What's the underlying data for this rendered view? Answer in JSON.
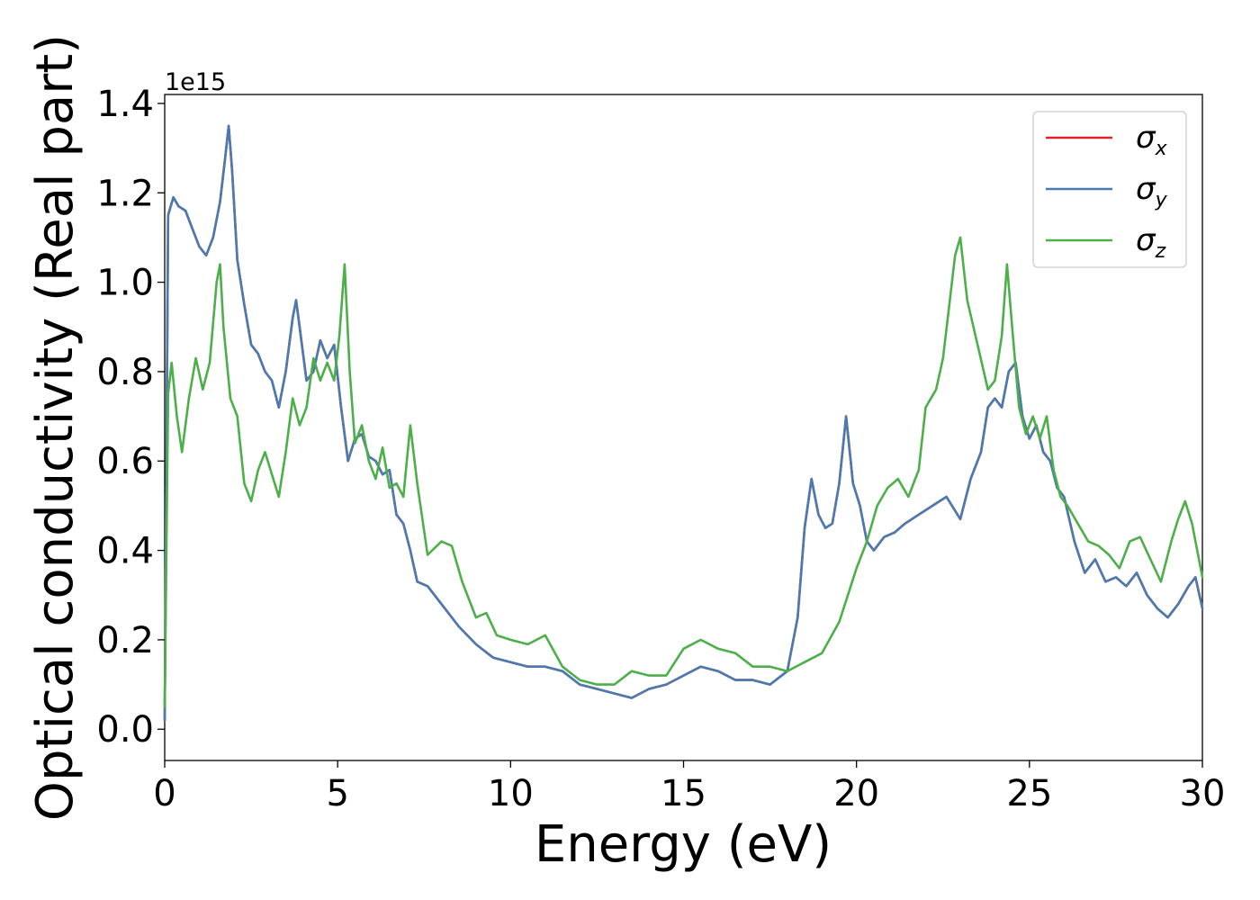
{
  "chart_data": {
    "type": "line",
    "title": "",
    "xlabel": "Energy (eV)",
    "ylabel": "Optical conductivity (Real part)",
    "y_offset_label": "1e15",
    "xlim": [
      0,
      30
    ],
    "ylim": [
      -0.07,
      1.42
    ],
    "xticks": [
      0,
      5,
      10,
      15,
      20,
      25,
      30
    ],
    "xtick_labels": [
      "0",
      "5",
      "10",
      "15",
      "20",
      "25",
      "30"
    ],
    "yticks": [
      0.0,
      0.2,
      0.4,
      0.6,
      0.8,
      1.0,
      1.2,
      1.4
    ],
    "ytick_labels": [
      "0.0",
      "0.2",
      "0.4",
      "0.6",
      "0.8",
      "1.0",
      "1.2",
      "1.4"
    ],
    "grid": false,
    "legend_position": "top-right",
    "series": [
      {
        "name": "σ",
        "subscript": "x",
        "color": "#d62728",
        "x": [
          0,
          0.1,
          0.25,
          0.4,
          0.6,
          0.8,
          1.0,
          1.2,
          1.4,
          1.6,
          1.75,
          1.85,
          1.95,
          2.1,
          2.3,
          2.5,
          2.7,
          2.9,
          3.1,
          3.3,
          3.5,
          3.7,
          3.8,
          3.9,
          4.1,
          4.3,
          4.5,
          4.7,
          4.9,
          5.1,
          5.3,
          5.5,
          5.7,
          5.9,
          6.1,
          6.3,
          6.5,
          6.7,
          6.9,
          7.1,
          7.3,
          7.6,
          8.0,
          8.5,
          9.0,
          9.5,
          10.0,
          10.5,
          11.0,
          11.5,
          12.0,
          12.5,
          13.0,
          13.5,
          14.0,
          14.5,
          15.0,
          15.5,
          16.0,
          16.5,
          17.0,
          17.5,
          18.0,
          18.3,
          18.5,
          18.7,
          18.9,
          19.1,
          19.3,
          19.5,
          19.7,
          19.9,
          20.1,
          20.3,
          20.5,
          20.8,
          21.1,
          21.4,
          21.8,
          22.2,
          22.6,
          23.0,
          23.3,
          23.6,
          23.8,
          24.0,
          24.2,
          24.4,
          24.6,
          24.8,
          25.0,
          25.2,
          25.4,
          25.6,
          25.8,
          26.0,
          26.3,
          26.6,
          26.9,
          27.2,
          27.5,
          27.8,
          28.1,
          28.4,
          28.7,
          29.0,
          29.3,
          29.6,
          29.8,
          30.0
        ],
        "y": [
          0.02,
          1.15,
          1.19,
          1.17,
          1.16,
          1.12,
          1.08,
          1.06,
          1.1,
          1.18,
          1.28,
          1.35,
          1.25,
          1.05,
          0.95,
          0.86,
          0.84,
          0.8,
          0.78,
          0.72,
          0.8,
          0.92,
          0.96,
          0.9,
          0.78,
          0.8,
          0.87,
          0.83,
          0.86,
          0.72,
          0.6,
          0.65,
          0.66,
          0.61,
          0.6,
          0.57,
          0.58,
          0.48,
          0.46,
          0.4,
          0.33,
          0.32,
          0.28,
          0.23,
          0.19,
          0.16,
          0.15,
          0.14,
          0.14,
          0.13,
          0.1,
          0.09,
          0.08,
          0.07,
          0.09,
          0.1,
          0.12,
          0.14,
          0.13,
          0.11,
          0.11,
          0.1,
          0.13,
          0.25,
          0.45,
          0.56,
          0.48,
          0.45,
          0.46,
          0.55,
          0.7,
          0.55,
          0.5,
          0.42,
          0.4,
          0.43,
          0.44,
          0.46,
          0.48,
          0.5,
          0.52,
          0.47,
          0.56,
          0.62,
          0.72,
          0.74,
          0.72,
          0.8,
          0.82,
          0.7,
          0.65,
          0.68,
          0.62,
          0.6,
          0.54,
          0.52,
          0.42,
          0.35,
          0.38,
          0.33,
          0.34,
          0.32,
          0.35,
          0.3,
          0.27,
          0.25,
          0.28,
          0.32,
          0.34,
          0.27
        ]
      },
      {
        "name": "σ",
        "subscript": "y",
        "color": "#4a7bb0",
        "x": [
          0,
          0.1,
          0.25,
          0.4,
          0.6,
          0.8,
          1.0,
          1.2,
          1.4,
          1.6,
          1.75,
          1.85,
          1.95,
          2.1,
          2.3,
          2.5,
          2.7,
          2.9,
          3.1,
          3.3,
          3.5,
          3.7,
          3.8,
          3.9,
          4.1,
          4.3,
          4.5,
          4.7,
          4.9,
          5.1,
          5.3,
          5.5,
          5.7,
          5.9,
          6.1,
          6.3,
          6.5,
          6.7,
          6.9,
          7.1,
          7.3,
          7.6,
          8.0,
          8.5,
          9.0,
          9.5,
          10.0,
          10.5,
          11.0,
          11.5,
          12.0,
          12.5,
          13.0,
          13.5,
          14.0,
          14.5,
          15.0,
          15.5,
          16.0,
          16.5,
          17.0,
          17.5,
          18.0,
          18.3,
          18.5,
          18.7,
          18.9,
          19.1,
          19.3,
          19.5,
          19.7,
          19.9,
          20.1,
          20.3,
          20.5,
          20.8,
          21.1,
          21.4,
          21.8,
          22.2,
          22.6,
          23.0,
          23.3,
          23.6,
          23.8,
          24.0,
          24.2,
          24.4,
          24.6,
          24.8,
          25.0,
          25.2,
          25.4,
          25.6,
          25.8,
          26.0,
          26.3,
          26.6,
          26.9,
          27.2,
          27.5,
          27.8,
          28.1,
          28.4,
          28.7,
          29.0,
          29.3,
          29.6,
          29.8,
          30.0
        ],
        "y": [
          0.02,
          1.15,
          1.19,
          1.17,
          1.16,
          1.12,
          1.08,
          1.06,
          1.1,
          1.18,
          1.28,
          1.35,
          1.25,
          1.05,
          0.95,
          0.86,
          0.84,
          0.8,
          0.78,
          0.72,
          0.8,
          0.92,
          0.96,
          0.9,
          0.78,
          0.8,
          0.87,
          0.83,
          0.86,
          0.72,
          0.6,
          0.65,
          0.66,
          0.61,
          0.6,
          0.57,
          0.58,
          0.48,
          0.46,
          0.4,
          0.33,
          0.32,
          0.28,
          0.23,
          0.19,
          0.16,
          0.15,
          0.14,
          0.14,
          0.13,
          0.1,
          0.09,
          0.08,
          0.07,
          0.09,
          0.1,
          0.12,
          0.14,
          0.13,
          0.11,
          0.11,
          0.1,
          0.13,
          0.25,
          0.45,
          0.56,
          0.48,
          0.45,
          0.46,
          0.55,
          0.7,
          0.55,
          0.5,
          0.42,
          0.4,
          0.43,
          0.44,
          0.46,
          0.48,
          0.5,
          0.52,
          0.47,
          0.56,
          0.62,
          0.72,
          0.74,
          0.72,
          0.8,
          0.82,
          0.7,
          0.65,
          0.68,
          0.62,
          0.6,
          0.54,
          0.52,
          0.42,
          0.35,
          0.38,
          0.33,
          0.34,
          0.32,
          0.35,
          0.3,
          0.27,
          0.25,
          0.28,
          0.32,
          0.34,
          0.27
        ]
      },
      {
        "name": "σ",
        "subscript": "z",
        "color": "#4daf4a",
        "x": [
          0,
          0.1,
          0.2,
          0.35,
          0.5,
          0.7,
          0.9,
          1.1,
          1.3,
          1.5,
          1.6,
          1.7,
          1.9,
          2.1,
          2.3,
          2.5,
          2.7,
          2.9,
          3.1,
          3.3,
          3.5,
          3.7,
          3.9,
          4.1,
          4.3,
          4.5,
          4.7,
          4.9,
          5.05,
          5.2,
          5.35,
          5.5,
          5.7,
          5.9,
          6.1,
          6.3,
          6.5,
          6.7,
          6.9,
          7.0,
          7.1,
          7.3,
          7.6,
          8.0,
          8.3,
          8.6,
          9.0,
          9.3,
          9.6,
          10.0,
          10.5,
          11.0,
          11.5,
          12.0,
          12.5,
          13.0,
          13.5,
          14.0,
          14.5,
          15.0,
          15.5,
          16.0,
          16.5,
          17.0,
          17.5,
          18.0,
          18.5,
          19.0,
          19.5,
          20.0,
          20.3,
          20.6,
          20.9,
          21.2,
          21.5,
          21.8,
          22.0,
          22.3,
          22.5,
          22.7,
          22.85,
          23.0,
          23.2,
          23.5,
          23.8,
          24.0,
          24.2,
          24.35,
          24.5,
          24.7,
          24.9,
          25.1,
          25.3,
          25.5,
          25.7,
          25.9,
          26.1,
          26.4,
          26.7,
          27.0,
          27.3,
          27.6,
          27.9,
          28.2,
          28.5,
          28.8,
          29.1,
          29.3,
          29.5,
          29.7,
          30.0
        ],
        "y": [
          0.05,
          0.75,
          0.82,
          0.7,
          0.62,
          0.74,
          0.83,
          0.76,
          0.82,
          1.0,
          1.04,
          0.9,
          0.74,
          0.7,
          0.55,
          0.51,
          0.58,
          0.62,
          0.57,
          0.52,
          0.62,
          0.74,
          0.68,
          0.72,
          0.83,
          0.78,
          0.82,
          0.78,
          0.88,
          1.04,
          0.8,
          0.64,
          0.68,
          0.6,
          0.56,
          0.63,
          0.54,
          0.55,
          0.52,
          0.6,
          0.68,
          0.55,
          0.39,
          0.42,
          0.41,
          0.33,
          0.25,
          0.26,
          0.21,
          0.2,
          0.19,
          0.21,
          0.14,
          0.11,
          0.1,
          0.1,
          0.13,
          0.12,
          0.12,
          0.18,
          0.2,
          0.18,
          0.17,
          0.14,
          0.14,
          0.13,
          0.15,
          0.17,
          0.24,
          0.36,
          0.42,
          0.5,
          0.54,
          0.56,
          0.52,
          0.58,
          0.72,
          0.76,
          0.83,
          0.96,
          1.06,
          1.1,
          0.96,
          0.86,
          0.76,
          0.78,
          0.88,
          1.04,
          0.9,
          0.72,
          0.66,
          0.7,
          0.65,
          0.7,
          0.58,
          0.52,
          0.5,
          0.46,
          0.42,
          0.41,
          0.39,
          0.36,
          0.42,
          0.43,
          0.38,
          0.33,
          0.42,
          0.47,
          0.51,
          0.46,
          0.34
        ]
      }
    ]
  }
}
